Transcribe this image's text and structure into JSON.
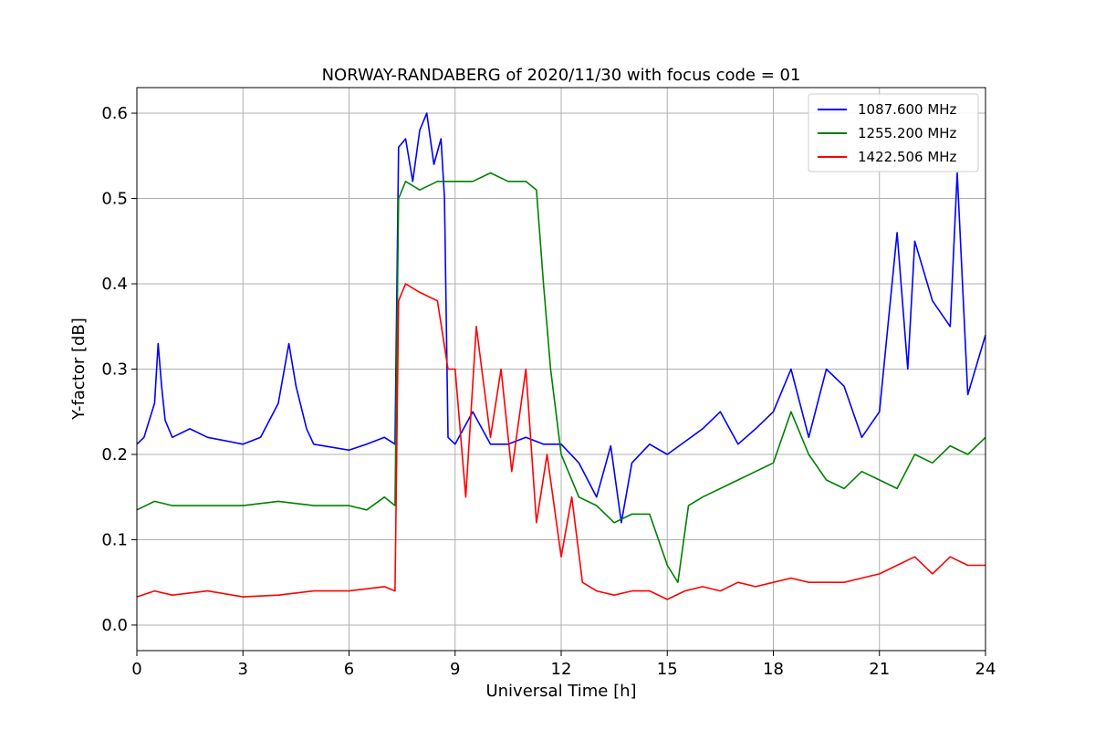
{
  "chart_data": {
    "type": "line",
    "title": "NORWAY-RANDABERG of 2020/11/30 with focus code = 01",
    "xlabel": "Universal Time [h]",
    "ylabel": "Y-factor [dB]",
    "xlim": [
      0,
      24
    ],
    "ylim": [
      -0.03,
      0.63
    ],
    "xticks": [
      0,
      3,
      6,
      9,
      12,
      15,
      18,
      21,
      24
    ],
    "yticks": [
      0.0,
      0.1,
      0.2,
      0.3,
      0.4,
      0.5,
      0.6
    ],
    "ytick_labels": [
      "0.0",
      "0.1",
      "0.2",
      "0.3",
      "0.4",
      "0.5",
      "0.6"
    ],
    "grid": true,
    "legend_position": "top-right",
    "series": [
      {
        "name": "1087.600 MHz",
        "color": "#0000ff",
        "x": [
          0,
          0.2,
          0.5,
          0.6,
          0.7,
          0.8,
          1.0,
          1.5,
          2.0,
          3.0,
          3.5,
          4.0,
          4.3,
          4.5,
          4.8,
          5.0,
          6.0,
          6.5,
          7.0,
          7.3,
          7.4,
          7.6,
          7.8,
          8.0,
          8.2,
          8.4,
          8.6,
          8.7,
          8.8,
          9.0,
          9.5,
          10.0,
          10.5,
          11.0,
          11.5,
          12.0,
          12.5,
          13.0,
          13.4,
          13.7,
          14.0,
          14.5,
          15.0,
          15.5,
          16.0,
          16.5,
          17.0,
          17.5,
          18.0,
          18.5,
          19.0,
          19.5,
          20.0,
          20.5,
          21.0,
          21.5,
          21.8,
          22.0,
          22.5,
          23.0,
          23.2,
          23.5,
          24.0
        ],
        "y": [
          0.212,
          0.22,
          0.26,
          0.33,
          0.28,
          0.24,
          0.22,
          0.23,
          0.22,
          0.212,
          0.22,
          0.26,
          0.33,
          0.28,
          0.23,
          0.212,
          0.205,
          0.212,
          0.22,
          0.212,
          0.56,
          0.57,
          0.52,
          0.58,
          0.6,
          0.54,
          0.57,
          0.5,
          0.22,
          0.212,
          0.25,
          0.212,
          0.212,
          0.22,
          0.212,
          0.212,
          0.19,
          0.15,
          0.21,
          0.12,
          0.19,
          0.212,
          0.2,
          0.215,
          0.23,
          0.25,
          0.212,
          0.23,
          0.25,
          0.3,
          0.22,
          0.3,
          0.28,
          0.22,
          0.25,
          0.46,
          0.3,
          0.45,
          0.38,
          0.35,
          0.53,
          0.27,
          0.34
        ]
      },
      {
        "name": "1255.200 MHz",
        "color": "#008000",
        "x": [
          0,
          0.5,
          1.0,
          2.0,
          3.0,
          4.0,
          5.0,
          6.0,
          6.5,
          7.0,
          7.3,
          7.4,
          7.6,
          8.0,
          8.5,
          9.0,
          9.5,
          10.0,
          10.5,
          11.0,
          11.3,
          11.5,
          11.7,
          12.0,
          12.5,
          13.0,
          13.5,
          14.0,
          14.5,
          15.0,
          15.3,
          15.6,
          16.0,
          16.5,
          17.0,
          17.5,
          18.0,
          18.5,
          19.0,
          19.5,
          20.0,
          20.5,
          21.0,
          21.5,
          22.0,
          22.5,
          23.0,
          23.5,
          24.0
        ],
        "y": [
          0.135,
          0.145,
          0.14,
          0.14,
          0.14,
          0.145,
          0.14,
          0.14,
          0.135,
          0.15,
          0.14,
          0.5,
          0.52,
          0.51,
          0.52,
          0.52,
          0.52,
          0.53,
          0.52,
          0.52,
          0.51,
          0.4,
          0.3,
          0.2,
          0.15,
          0.14,
          0.12,
          0.13,
          0.13,
          0.07,
          0.05,
          0.14,
          0.15,
          0.16,
          0.17,
          0.18,
          0.19,
          0.25,
          0.2,
          0.17,
          0.16,
          0.18,
          0.17,
          0.16,
          0.2,
          0.19,
          0.21,
          0.2,
          0.22
        ]
      },
      {
        "name": "1422.506 MHz",
        "color": "#ff0000",
        "x": [
          0,
          0.5,
          1.0,
          2.0,
          3.0,
          4.0,
          5.0,
          6.0,
          7.0,
          7.3,
          7.4,
          7.6,
          8.0,
          8.5,
          8.8,
          9.0,
          9.3,
          9.6,
          10.0,
          10.3,
          10.6,
          11.0,
          11.3,
          11.6,
          12.0,
          12.3,
          12.6,
          13.0,
          13.5,
          14.0,
          14.5,
          15.0,
          15.5,
          16.0,
          16.5,
          17.0,
          17.5,
          18.0,
          18.5,
          19.0,
          19.5,
          20.0,
          20.5,
          21.0,
          21.5,
          22.0,
          22.5,
          23.0,
          23.5,
          24.0
        ],
        "y": [
          0.033,
          0.04,
          0.035,
          0.04,
          0.033,
          0.035,
          0.04,
          0.04,
          0.045,
          0.04,
          0.38,
          0.4,
          0.39,
          0.38,
          0.3,
          0.3,
          0.15,
          0.35,
          0.22,
          0.3,
          0.18,
          0.3,
          0.12,
          0.2,
          0.08,
          0.15,
          0.05,
          0.04,
          0.035,
          0.04,
          0.04,
          0.03,
          0.04,
          0.045,
          0.04,
          0.05,
          0.045,
          0.05,
          0.055,
          0.05,
          0.05,
          0.05,
          0.055,
          0.06,
          0.07,
          0.08,
          0.06,
          0.08,
          0.07,
          0.07
        ]
      }
    ]
  }
}
